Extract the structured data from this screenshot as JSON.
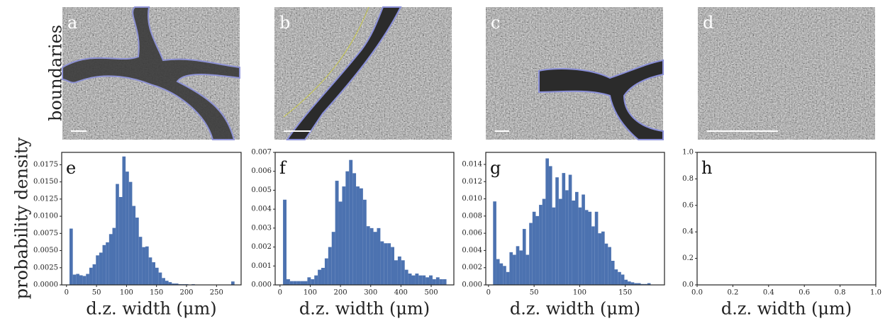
{
  "panels": {
    "row_label": "boundaries",
    "labels": [
      "a",
      "b",
      "c",
      "d"
    ]
  },
  "y_label": "probability density",
  "chart_data": [
    {
      "type": "histogram",
      "panel_label": "e",
      "xlabel": "d.z. width (μm)",
      "color": "#4c72b0",
      "xlim": [
        -8,
        291
      ],
      "xticks": [
        0,
        50,
        100,
        150,
        200,
        250
      ],
      "ylim": [
        0,
        0.0193
      ],
      "yticks": [
        {
          "value": 0,
          "label": "0.0000"
        },
        {
          "value": 0.0025,
          "label": "0.0025"
        },
        {
          "value": 0.005,
          "label": "0.0050"
        },
        {
          "value": 0.0075,
          "label": "0.0075"
        },
        {
          "value": 0.01,
          "label": "0.0100"
        },
        {
          "value": 0.0125,
          "label": "0.0125"
        },
        {
          "value": 0.015,
          "label": "0.0150"
        },
        {
          "value": 0.0175,
          "label": "0.0175"
        }
      ],
      "bins": [
        5,
        10.5,
        16,
        21.5,
        27,
        32.5,
        38,
        43.5,
        49,
        54.5,
        60,
        65.5,
        71,
        76.5,
        82,
        87.5,
        93,
        98.5,
        104,
        109.5,
        115,
        120.5,
        126,
        131.5,
        137,
        142.5,
        148,
        153.5,
        159,
        164.5,
        170,
        175.5,
        181,
        186.5,
        192,
        197.5,
        203,
        208.5,
        214,
        219.5,
        225,
        230.5,
        236,
        241.5,
        247,
        252.5,
        258,
        263.5,
        269,
        274.5,
        280
      ],
      "values": [
        0.0082,
        0.0015,
        0.0016,
        0.0014,
        0.0013,
        0.0016,
        0.0025,
        0.003,
        0.0043,
        0.0047,
        0.0058,
        0.0062,
        0.0074,
        0.0083,
        0.0147,
        0.0128,
        0.0187,
        0.0165,
        0.015,
        0.0115,
        0.0098,
        0.007,
        0.0055,
        0.0056,
        0.004,
        0.0033,
        0.0025,
        0.0018,
        0.001,
        0.0006,
        0.0004,
        0.0002,
        0.0002,
        0.0001,
        0.0001,
        0.0001,
        0,
        0.0001,
        0,
        0,
        0,
        0,
        0,
        0,
        0,
        0,
        0,
        0,
        0,
        0.0005
      ]
    },
    {
      "type": "histogram",
      "panel_label": "f",
      "xlabel": "d.z. width (μm)",
      "color": "#4c72b0",
      "xlim": [
        -16,
        575
      ],
      "xticks": [
        0,
        100,
        200,
        300,
        400,
        500
      ],
      "ylim": [
        0,
        0.007
      ],
      "yticks": [
        {
          "value": 0,
          "label": "0.000"
        },
        {
          "value": 0.001,
          "label": "0.001"
        },
        {
          "value": 0.002,
          "label": "0.002"
        },
        {
          "value": 0.003,
          "label": "0.003"
        },
        {
          "value": 0.004,
          "label": "0.004"
        },
        {
          "value": 0.005,
          "label": "0.005"
        },
        {
          "value": 0.006,
          "label": "0.006"
        },
        {
          "value": 0.007,
          "label": "0.007"
        }
      ],
      "bins": [
        10,
        21.5,
        33,
        44.5,
        56,
        67.5,
        79,
        90.5,
        102,
        113.5,
        125,
        136.5,
        148,
        159.5,
        171,
        182.5,
        194,
        205.5,
        217,
        228.5,
        240,
        251.5,
        263,
        274.5,
        286,
        297.5,
        309,
        320.5,
        332,
        343.5,
        355,
        366.5,
        378,
        389.5,
        401,
        412.5,
        424,
        435.5,
        447,
        458.5,
        470,
        481.5,
        493,
        504.5,
        516,
        527.5,
        539,
        550.5
      ],
      "values": [
        0.0045,
        0.0003,
        0.0002,
        0.0002,
        0.0002,
        0.0002,
        0.0002,
        0.0004,
        0.0003,
        0.0005,
        0.0008,
        0.0009,
        0.0014,
        0.002,
        0.0028,
        0.0055,
        0.0044,
        0.0052,
        0.006,
        0.0066,
        0.0059,
        0.0052,
        0.0051,
        0.0045,
        0.0031,
        0.003,
        0.0028,
        0.003,
        0.0023,
        0.0022,
        0.0022,
        0.002,
        0.0013,
        0.0015,
        0.0013,
        0.0008,
        0.0006,
        0.0005,
        0.0006,
        0.0005,
        0.0005,
        0.0004,
        0.0005,
        0.0003,
        0.0004,
        0.0003,
        0.0003
      ]
    },
    {
      "type": "histogram",
      "panel_label": "g",
      "xlabel": "d.z. width (μm)",
      "color": "#4c72b0",
      "xlim": [
        -3,
        193
      ],
      "xticks": [
        0,
        50,
        100,
        150
      ],
      "ylim": [
        0,
        0.0154
      ],
      "yticks": [
        {
          "value": 0,
          "label": "0.000"
        },
        {
          "value": 0.002,
          "label": "0.002"
        },
        {
          "value": 0.004,
          "label": "0.004"
        },
        {
          "value": 0.006,
          "label": "0.006"
        },
        {
          "value": 0.008,
          "label": "0.008"
        },
        {
          "value": 0.01,
          "label": "0.010"
        },
        {
          "value": 0.012,
          "label": "0.012"
        },
        {
          "value": 0.014,
          "label": "0.014"
        }
      ],
      "bins": [
        5,
        8.6,
        12.2,
        15.8,
        19.4,
        23,
        26.6,
        30.2,
        33.8,
        37.4,
        41,
        44.6,
        48.2,
        51.8,
        55.4,
        59,
        62.6,
        66.2,
        69.8,
        73.4,
        77,
        80.6,
        84.2,
        87.8,
        91.4,
        95,
        98.6,
        102.2,
        105.8,
        109.4,
        113,
        116.6,
        120.2,
        123.8,
        127.4,
        131,
        134.6,
        138.2,
        141.8,
        145.4,
        149,
        152.6,
        156.2,
        159.8,
        163.4,
        167,
        170.6,
        174.2,
        177.8
      ],
      "values": [
        0.0097,
        0.003,
        0.0025,
        0.0022,
        0.0015,
        0.0038,
        0.0035,
        0.0045,
        0.004,
        0.0065,
        0.0035,
        0.0072,
        0.0085,
        0.008,
        0.0093,
        0.01,
        0.0147,
        0.0138,
        0.009,
        0.0125,
        0.01,
        0.013,
        0.011,
        0.0128,
        0.0098,
        0.0108,
        0.009,
        0.0105,
        0.0087,
        0.0085,
        0.0068,
        0.0085,
        0.006,
        0.0062,
        0.0048,
        0.0044,
        0.0028,
        0.0018,
        0.0015,
        0.0012,
        0.0006,
        0.0004,
        0.0003,
        0.0002,
        0.0002,
        0.0001,
        0.0001,
        0.0002
      ]
    },
    {
      "type": "histogram",
      "panel_label": "h",
      "xlabel": "d.z. width (μm)",
      "color": "#4c72b0",
      "xlim": [
        0,
        1
      ],
      "xticks": [
        {
          "value": 0,
          "label": "0.0"
        },
        {
          "value": 0.2,
          "label": "0.2"
        },
        {
          "value": 0.4,
          "label": "0.4"
        },
        {
          "value": 0.6,
          "label": "0.6"
        },
        {
          "value": 0.8,
          "label": "0.8"
        },
        {
          "value": 1,
          "label": "1.0"
        }
      ],
      "ylim": [
        0,
        1
      ],
      "yticks": [
        {
          "value": 0,
          "label": "0.0"
        },
        {
          "value": 0.2,
          "label": "0.2"
        },
        {
          "value": 0.4,
          "label": "0.4"
        },
        {
          "value": 0.6,
          "label": "0.6"
        },
        {
          "value": 0.8,
          "label": "0.8"
        },
        {
          "value": 1,
          "label": "1.0"
        }
      ]
    }
  ]
}
